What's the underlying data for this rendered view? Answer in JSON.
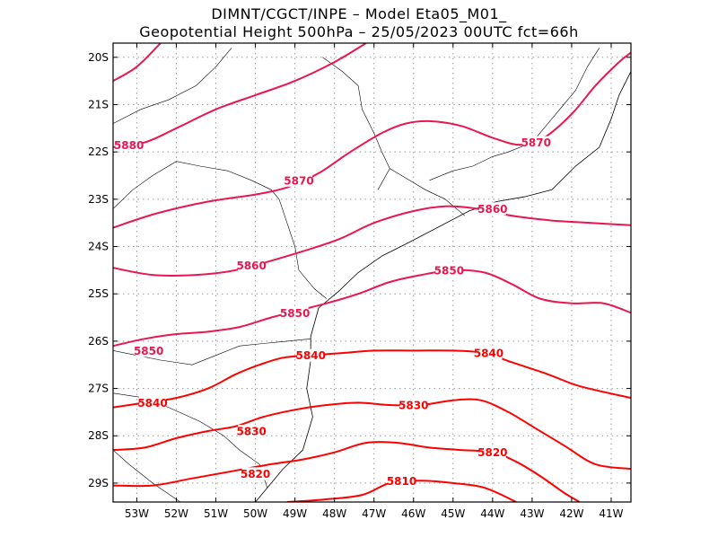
{
  "header": {
    "line1": "DIMNT/CGCT/INPE –  Model Eta05_M01_",
    "line2": "Geopotential Height 500hPa –  25/05/2023 00UTC fct=66h"
  },
  "axes": {
    "lon_min": -53.6,
    "lon_max": -40.5,
    "lat_min": -29.4,
    "lat_max": -19.7,
    "x_ticks": [
      {
        "value": -53,
        "label": "53W"
      },
      {
        "value": -52,
        "label": "52W"
      },
      {
        "value": -51,
        "label": "51W"
      },
      {
        "value": -50,
        "label": "50W"
      },
      {
        "value": -49,
        "label": "49W"
      },
      {
        "value": -48,
        "label": "48W"
      },
      {
        "value": -47,
        "label": "47W"
      },
      {
        "value": -46,
        "label": "46W"
      },
      {
        "value": -45,
        "label": "45W"
      },
      {
        "value": -44,
        "label": "44W"
      },
      {
        "value": -43,
        "label": "43W"
      },
      {
        "value": -42,
        "label": "42W"
      },
      {
        "value": -41,
        "label": "41W"
      }
    ],
    "y_ticks": [
      {
        "value": -20,
        "label": "20S"
      },
      {
        "value": -21,
        "label": "21S"
      },
      {
        "value": -22,
        "label": "22S"
      },
      {
        "value": -23,
        "label": "23S"
      },
      {
        "value": -24,
        "label": "24S"
      },
      {
        "value": -25,
        "label": "25S"
      },
      {
        "value": -26,
        "label": "26S"
      },
      {
        "value": -27,
        "label": "27S"
      },
      {
        "value": -28,
        "label": "28S"
      },
      {
        "value": -29,
        "label": "29S"
      }
    ],
    "grid": true
  },
  "colors": {
    "contour_high": "#e8174f",
    "contour_low": "#ff0000",
    "coast": "#000000",
    "grid": "#9a9a9a"
  },
  "contours": [
    {
      "level": "5880",
      "points": [
        [
          -53.6,
          -20.5
        ],
        [
          -53.0,
          -20.2
        ],
        [
          -52.4,
          -19.7
        ]
      ],
      "labels": []
    },
    {
      "level": "5880",
      "points": [
        [
          -53.6,
          -21.9
        ],
        [
          -52.8,
          -21.8
        ],
        [
          -52.0,
          -21.5
        ],
        [
          -51.0,
          -21.1
        ],
        [
          -50.0,
          -20.8
        ],
        [
          -49.0,
          -20.5
        ],
        [
          -48.0,
          -20.1
        ],
        [
          -47.2,
          -19.7
        ]
      ],
      "labels": [
        [
          -53.2,
          -21.85
        ]
      ]
    },
    {
      "level": "5870",
      "points": [
        [
          -53.6,
          -23.6
        ],
        [
          -52.5,
          -23.3
        ],
        [
          -51.2,
          -23.05
        ],
        [
          -50.0,
          -22.9
        ],
        [
          -49.2,
          -22.75
        ],
        [
          -48.4,
          -22.45
        ],
        [
          -47.6,
          -22.0
        ],
        [
          -46.8,
          -21.6
        ],
        [
          -46.2,
          -21.4
        ],
        [
          -45.6,
          -21.35
        ],
        [
          -44.8,
          -21.45
        ],
        [
          -44.0,
          -21.7
        ],
        [
          -43.3,
          -21.85
        ],
        [
          -42.7,
          -21.7
        ],
        [
          -42.0,
          -21.2
        ],
        [
          -41.4,
          -20.6
        ],
        [
          -40.8,
          -20.1
        ],
        [
          -40.5,
          -19.9
        ]
      ],
      "labels": [
        [
          -48.9,
          -22.6
        ],
        [
          -42.9,
          -21.8
        ]
      ]
    },
    {
      "level": "5860",
      "points": [
        [
          -53.6,
          -24.45
        ],
        [
          -52.6,
          -24.6
        ],
        [
          -51.5,
          -24.6
        ],
        [
          -50.5,
          -24.5
        ],
        [
          -49.6,
          -24.3
        ],
        [
          -48.8,
          -24.1
        ],
        [
          -47.9,
          -23.85
        ],
        [
          -47.0,
          -23.5
        ],
        [
          -46.0,
          -23.25
        ],
        [
          -45.2,
          -23.15
        ],
        [
          -44.4,
          -23.2
        ],
        [
          -43.5,
          -23.35
        ],
        [
          -42.5,
          -23.45
        ],
        [
          -41.5,
          -23.5
        ],
        [
          -40.5,
          -23.55
        ]
      ],
      "labels": [
        [
          -50.1,
          -24.4
        ],
        [
          -44.0,
          -23.2
        ]
      ]
    },
    {
      "level": "5850",
      "points": [
        [
          -53.6,
          -26.1
        ],
        [
          -52.8,
          -25.95
        ],
        [
          -52.0,
          -25.85
        ],
        [
          -51.2,
          -25.8
        ],
        [
          -50.4,
          -25.7
        ],
        [
          -49.6,
          -25.5
        ],
        [
          -48.9,
          -25.35
        ],
        [
          -48.2,
          -25.2
        ],
        [
          -47.4,
          -25.0
        ],
        [
          -46.6,
          -24.75
        ],
        [
          -45.8,
          -24.6
        ],
        [
          -45.0,
          -24.5
        ],
        [
          -44.2,
          -24.55
        ],
        [
          -43.5,
          -24.8
        ],
        [
          -42.8,
          -25.1
        ],
        [
          -42.0,
          -25.2
        ],
        [
          -41.2,
          -25.2
        ],
        [
          -40.5,
          -25.4
        ]
      ],
      "labels": [
        [
          -49.0,
          -25.4
        ],
        [
          -52.7,
          -26.2
        ],
        [
          -45.1,
          -24.5
        ]
      ]
    },
    {
      "level": "5840",
      "points": [
        [
          -53.6,
          -27.4
        ],
        [
          -52.8,
          -27.3
        ],
        [
          -52.0,
          -27.2
        ],
        [
          -51.2,
          -27.0
        ],
        [
          -50.5,
          -26.7
        ],
        [
          -49.9,
          -26.5
        ],
        [
          -49.3,
          -26.35
        ],
        [
          -48.6,
          -26.3
        ],
        [
          -47.8,
          -26.25
        ],
        [
          -47.0,
          -26.2
        ],
        [
          -46.0,
          -26.2
        ],
        [
          -45.0,
          -26.2
        ],
        [
          -44.2,
          -26.25
        ],
        [
          -43.5,
          -26.45
        ],
        [
          -42.6,
          -26.7
        ],
        [
          -41.8,
          -26.95
        ],
        [
          -40.5,
          -27.2
        ]
      ],
      "labels": [
        [
          -52.6,
          -27.3
        ],
        [
          -48.6,
          -26.3
        ],
        [
          -44.1,
          -26.25
        ]
      ]
    },
    {
      "level": "5830",
      "points": [
        [
          -53.6,
          -28.3
        ],
        [
          -52.8,
          -28.25
        ],
        [
          -52.0,
          -28.05
        ],
        [
          -51.2,
          -27.9
        ],
        [
          -50.5,
          -27.8
        ],
        [
          -49.8,
          -27.6
        ],
        [
          -49.0,
          -27.45
        ],
        [
          -48.2,
          -27.35
        ],
        [
          -47.4,
          -27.3
        ],
        [
          -46.6,
          -27.35
        ],
        [
          -45.8,
          -27.35
        ],
        [
          -45.0,
          -27.25
        ],
        [
          -44.3,
          -27.25
        ],
        [
          -43.6,
          -27.5
        ],
        [
          -42.9,
          -27.85
        ],
        [
          -42.2,
          -28.2
        ],
        [
          -41.4,
          -28.6
        ],
        [
          -40.5,
          -28.7
        ]
      ],
      "labels": [
        [
          -50.1,
          -27.9
        ],
        [
          -46.0,
          -27.35
        ]
      ]
    },
    {
      "level": "5820",
      "points": [
        [
          -53.6,
          -29.05
        ],
        [
          -52.6,
          -29.05
        ],
        [
          -51.6,
          -28.9
        ],
        [
          -50.6,
          -28.75
        ],
        [
          -49.6,
          -28.6
        ],
        [
          -48.8,
          -28.5
        ],
        [
          -48.0,
          -28.35
        ],
        [
          -47.2,
          -28.15
        ],
        [
          -46.4,
          -28.15
        ],
        [
          -45.6,
          -28.25
        ],
        [
          -44.8,
          -28.3
        ],
        [
          -44.0,
          -28.35
        ],
        [
          -43.4,
          -28.55
        ],
        [
          -42.8,
          -28.85
        ],
        [
          -42.2,
          -29.2
        ],
        [
          -41.8,
          -29.4
        ]
      ],
      "labels": [
        [
          -50.0,
          -28.8
        ],
        [
          -44.0,
          -28.35
        ]
      ]
    },
    {
      "level": "5810",
      "points": [
        [
          -49.2,
          -29.4
        ],
        [
          -48.3,
          -29.35
        ],
        [
          -47.3,
          -29.25
        ],
        [
          -46.6,
          -29.0
        ],
        [
          -45.8,
          -28.95
        ],
        [
          -45.0,
          -29.0
        ],
        [
          -44.2,
          -29.1
        ],
        [
          -43.4,
          -29.4
        ]
      ],
      "labels": [
        [
          -46.3,
          -28.95
        ]
      ]
    }
  ],
  "coastline": [
    [
      [
        -40.5,
        -20.3
      ],
      [
        -40.8,
        -20.8
      ],
      [
        -41.0,
        -21.3
      ],
      [
        -41.3,
        -21.9
      ],
      [
        -41.9,
        -22.3
      ],
      [
        -42.5,
        -22.8
      ],
      [
        -43.2,
        -22.95
      ],
      [
        -43.9,
        -23.05
      ],
      [
        -44.6,
        -23.25
      ],
      [
        -45.4,
        -23.6
      ],
      [
        -46.2,
        -23.95
      ],
      [
        -46.8,
        -24.2
      ],
      [
        -47.4,
        -24.55
      ],
      [
        -47.9,
        -24.95
      ],
      [
        -48.4,
        -25.3
      ],
      [
        -48.6,
        -25.9
      ],
      [
        -48.6,
        -26.4
      ],
      [
        -48.7,
        -27.0
      ],
      [
        -48.55,
        -27.6
      ],
      [
        -48.8,
        -28.3
      ],
      [
        -49.3,
        -28.7
      ],
      [
        -49.7,
        -29.1
      ],
      [
        -50.0,
        -29.4
      ]
    ]
  ],
  "borders": [
    [
      [
        -49.4,
        -23.0
      ],
      [
        -49.6,
        -22.8
      ],
      [
        -50.1,
        -22.6
      ],
      [
        -50.7,
        -22.4
      ],
      [
        -51.4,
        -22.3
      ],
      [
        -52.0,
        -22.2
      ],
      [
        -52.6,
        -22.5
      ],
      [
        -53.1,
        -22.8
      ],
      [
        -53.6,
        -23.2
      ]
    ],
    [
      [
        -49.4,
        -23.0
      ],
      [
        -49.2,
        -23.5
      ],
      [
        -49.0,
        -24.0
      ],
      [
        -48.9,
        -24.5
      ],
      [
        -48.5,
        -24.9
      ],
      [
        -48.2,
        -25.1
      ]
    ],
    [
      [
        -48.6,
        -25.95
      ],
      [
        -49.2,
        -26.0
      ],
      [
        -49.8,
        -26.05
      ],
      [
        -50.4,
        -26.1
      ],
      [
        -51.0,
        -26.3
      ],
      [
        -51.6,
        -26.5
      ],
      [
        -52.4,
        -26.4
      ],
      [
        -53.0,
        -26.3
      ],
      [
        -53.6,
        -26.2
      ]
    ],
    [
      [
        -49.7,
        -29.1
      ],
      [
        -49.9,
        -28.6
      ],
      [
        -50.4,
        -28.3
      ],
      [
        -50.8,
        -28.0
      ],
      [
        -51.4,
        -27.7
      ],
      [
        -52.2,
        -27.4
      ],
      [
        -52.8,
        -27.2
      ],
      [
        -53.6,
        -27.1
      ]
    ],
    [
      [
        -53.6,
        -21.4
      ],
      [
        -52.9,
        -21.1
      ],
      [
        -52.2,
        -20.9
      ],
      [
        -51.5,
        -20.6
      ],
      [
        -51.0,
        -20.2
      ],
      [
        -50.6,
        -19.8
      ]
    ],
    [
      [
        -45.6,
        -22.6
      ],
      [
        -45.0,
        -22.4
      ],
      [
        -44.5,
        -22.3
      ],
      [
        -44.0,
        -22.1
      ],
      [
        -43.6,
        -22.0
      ],
      [
        -43.0,
        -21.8
      ],
      [
        -42.6,
        -21.4
      ],
      [
        -42.2,
        -21.0
      ],
      [
        -41.9,
        -20.7
      ]
    ],
    [
      [
        -46.9,
        -22.8
      ],
      [
        -46.6,
        -22.35
      ],
      [
        -46.8,
        -22.0
      ],
      [
        -47.0,
        -21.6
      ],
      [
        -47.3,
        -21.1
      ],
      [
        -47.4,
        -20.6
      ],
      [
        -47.8,
        -20.3
      ],
      [
        -48.3,
        -20.0
      ]
    ],
    [
      [
        -44.7,
        -23.35
      ],
      [
        -45.2,
        -23.0
      ],
      [
        -45.7,
        -22.8
      ],
      [
        -46.1,
        -22.6
      ],
      [
        -46.6,
        -22.35
      ]
    ],
    [
      [
        -41.9,
        -20.7
      ],
      [
        -41.6,
        -20.2
      ],
      [
        -41.3,
        -19.8
      ]
    ],
    [
      [
        -51.9,
        -29.4
      ],
      [
        -52.6,
        -29.0
      ],
      [
        -53.2,
        -28.6
      ],
      [
        -53.6,
        -28.3
      ]
    ]
  ]
}
